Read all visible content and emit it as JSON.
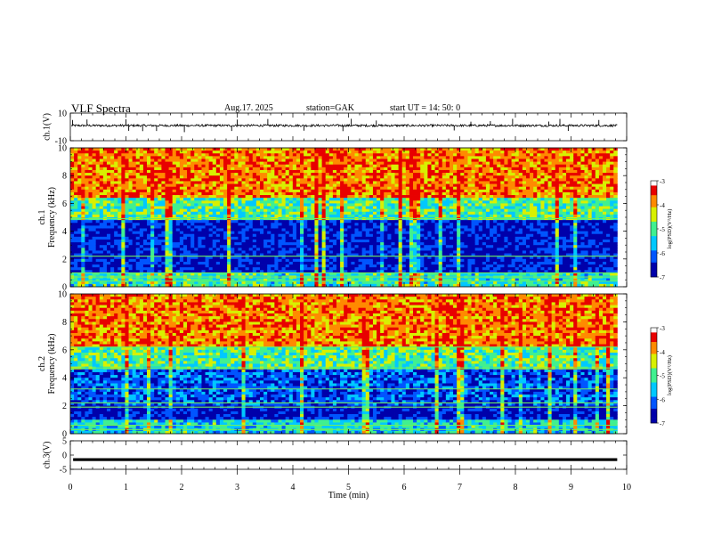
{
  "header": {
    "title": "VLF  Spectra",
    "date": "Aug.17. 2025",
    "station": "station=GAK",
    "start": "start  UT =   14: 50: 0"
  },
  "chart_data": [
    {
      "id": "ch1-waveform",
      "type": "line",
      "ylabel": "ch.1(V)",
      "ylim": [
        -10,
        10
      ],
      "y_tick_labels": [
        "10",
        "-10"
      ],
      "xlim": [
        0,
        10
      ],
      "baseline": 1,
      "noise_amp": 0.8,
      "spike_times": [
        0.04,
        0.3,
        1.0,
        1.05,
        1.3,
        1.55,
        2.05,
        2.9,
        3.0,
        3.55,
        4.2,
        4.9,
        5.05,
        5.5,
        6.9,
        7.2,
        7.55,
        7.95,
        8.6,
        8.8,
        8.95,
        9.5
      ],
      "spike_amp": 4.5
    },
    {
      "id": "ch1-spectrogram",
      "type": "heatmap",
      "ylabel": "ch.1\nFrequency  (kHz)",
      "ylim": [
        0,
        10
      ],
      "y_ticks": [
        0,
        2,
        4,
        6,
        8,
        10
      ],
      "xlim": [
        0,
        10
      ],
      "data_end_min": 9.83,
      "colorbar": {
        "label": "log(PSD)(V²/Hz)",
        "range": [
          -7,
          -3
        ],
        "ticks": [
          "-3",
          "-4",
          "-5",
          "-6",
          "-7"
        ]
      },
      "bands_khz": [
        {
          "from": 0,
          "to": 1.0,
          "log_psd": -5.2
        },
        {
          "from": 1.0,
          "to": 4.9,
          "log_psd": -6.6
        },
        {
          "from": 4.9,
          "to": 6.5,
          "log_psd": -5.0
        },
        {
          "from": 6.5,
          "to": 10,
          "log_psd": -3.8
        }
      ],
      "lines_khz": [
        0.4,
        0.7,
        1.0,
        2.2,
        4.9
      ]
    },
    {
      "id": "ch2-spectrogram",
      "type": "heatmap",
      "ylabel": "ch.2\nFrequency  (kHz)",
      "ylim": [
        0,
        10
      ],
      "y_ticks": [
        0,
        2,
        4,
        6,
        8,
        10
      ],
      "xlim": [
        0,
        10
      ],
      "data_end_min": 9.83,
      "colorbar": {
        "label": "log(PSD)(V²/Hz)",
        "range": [
          -7,
          -3
        ],
        "ticks": [
          "-3",
          "-4",
          "-5",
          "-6",
          "-7"
        ]
      },
      "bands_khz": [
        {
          "from": 0,
          "to": 1.0,
          "log_psd": -5.4
        },
        {
          "from": 1.0,
          "to": 2.0,
          "log_psd": -6.7
        },
        {
          "from": 2.0,
          "to": 4.7,
          "log_psd": -6.2
        },
        {
          "from": 4.7,
          "to": 6.2,
          "log_psd": -5.0
        },
        {
          "from": 6.2,
          "to": 10,
          "log_psd": -3.8
        }
      ],
      "lines_khz": [
        0.3,
        0.6,
        1.9,
        2.2,
        3.2,
        4.7,
        6.2
      ]
    },
    {
      "id": "ch3-waveform",
      "type": "line",
      "ylabel": "ch.3(V)",
      "ylim": [
        -5,
        5
      ],
      "y_tick_labels": [
        "5",
        "0",
        "-5"
      ],
      "xlim": [
        0,
        10
      ],
      "baseline": -1.6,
      "noise_amp": 0.2
    }
  ],
  "x_axis": {
    "label": "Time  (min)",
    "range": [
      0,
      10
    ],
    "tick_labels": [
      "0",
      "1",
      "2",
      "3",
      "4",
      "5",
      "6",
      "7",
      "8",
      "9",
      "10"
    ]
  },
  "colors": {
    "scale": [
      "#0000aa",
      "#0055ff",
      "#00c8ff",
      "#40f090",
      "#d8f000",
      "#ff8a00",
      "#e80000"
    ],
    "line": "#000000"
  }
}
